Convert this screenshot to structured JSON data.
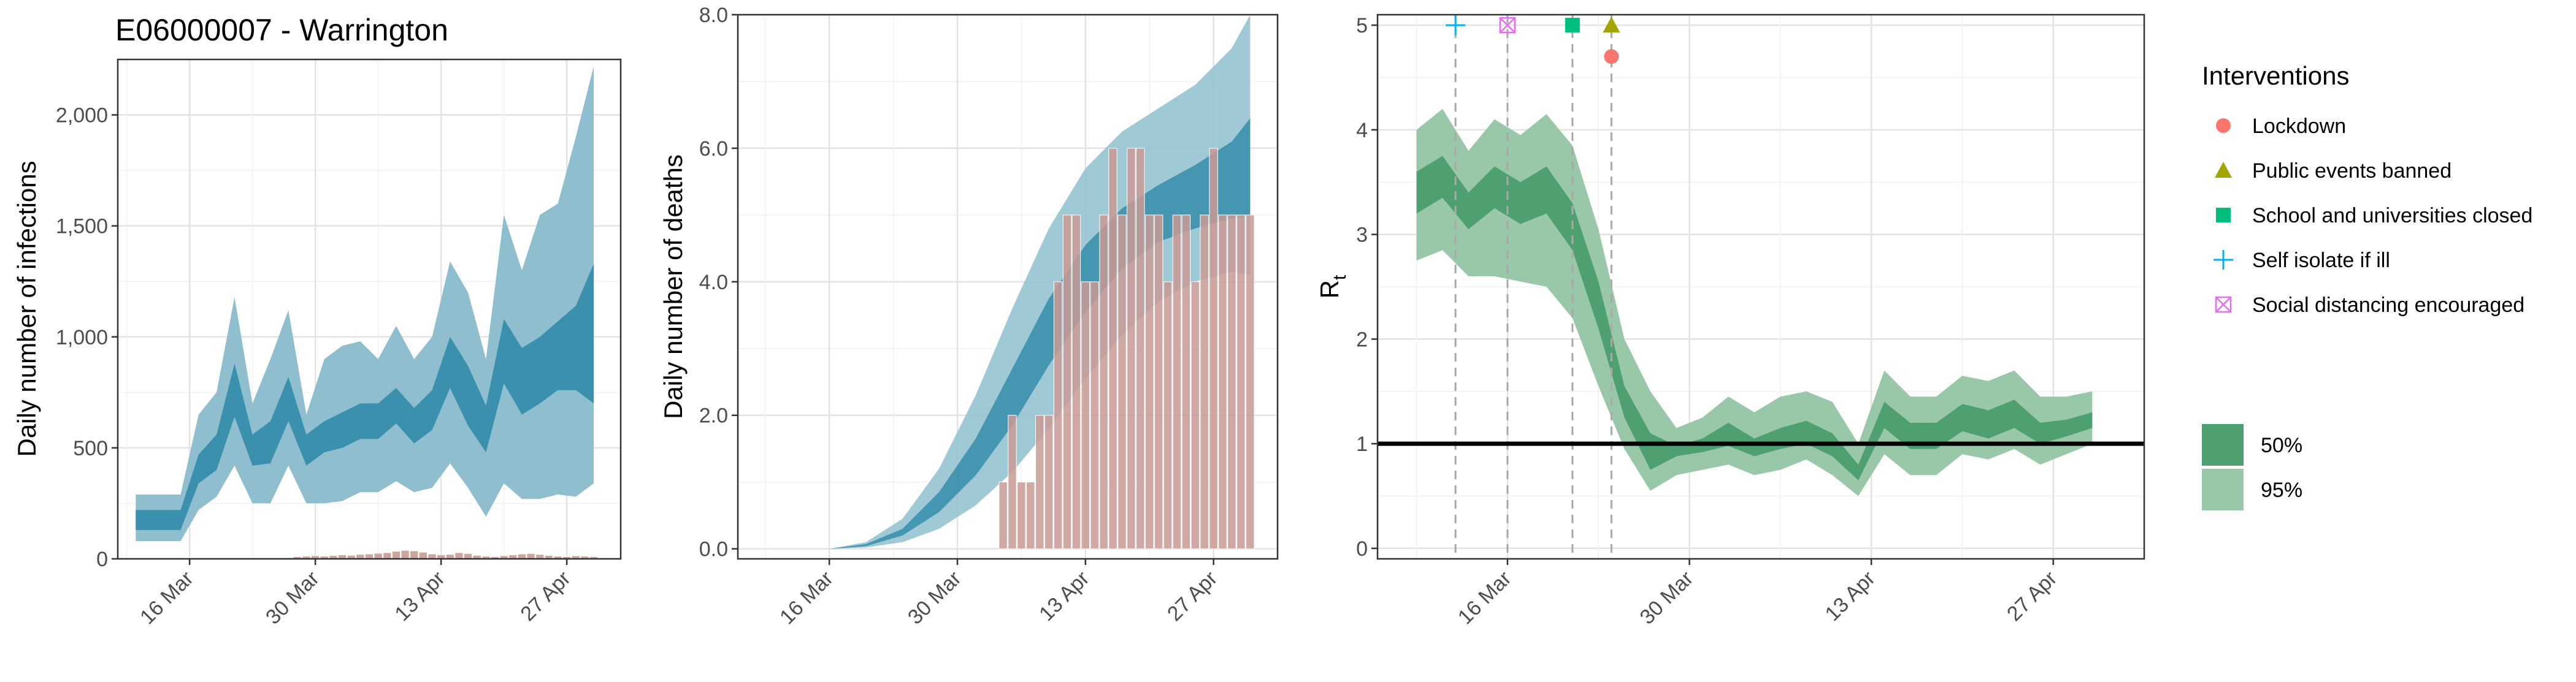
{
  "figure_title": "E06000007 - Warrington",
  "colors": {
    "infection_band_95": "#8fbfcf",
    "infection_band_50": "#3a90ad",
    "deaths_band_95": "#8fbfcf",
    "deaths_band_50": "#3a90ad",
    "observed_bar": "#c99a94",
    "rt_band_95": "#99c8a8",
    "rt_band_50": "#4ea070",
    "lockdown": "#f8766d",
    "public_events_banned": "#a3a500",
    "school_closed": "#00bf7d",
    "self_isolate": "#00b0f6",
    "social_distancing": "#e76bf3"
  },
  "chart_data": [
    {
      "id": "infections",
      "type": "area",
      "title": "E06000007 - Warrington",
      "ylabel": "Daily number of infections",
      "xlabel": "",
      "x_ticks": [
        "16 Mar",
        "30 Mar",
        "13 Apr",
        "27 Apr"
      ],
      "y_ticks": [
        "0",
        "500",
        "1,000",
        "1,500",
        "2,000"
      ],
      "ylim": [
        0,
        2250
      ],
      "xlim": [
        "2020-03-08",
        "2020-05-03"
      ],
      "grid": true,
      "series": [
        {
          "interval": "95%",
          "x": [
            "2020-03-10",
            "2020-03-15",
            "2020-03-17",
            "2020-03-19",
            "2020-03-21",
            "2020-03-23",
            "2020-03-25",
            "2020-03-27",
            "2020-03-29",
            "2020-03-31",
            "2020-04-02",
            "2020-04-04",
            "2020-04-06",
            "2020-04-08",
            "2020-04-10",
            "2020-04-12",
            "2020-04-14",
            "2020-04-16",
            "2020-04-18",
            "2020-04-20",
            "2020-04-22",
            "2020-04-24",
            "2020-04-26",
            "2020-04-28",
            "2020-04-30"
          ],
          "lower": [
            80,
            80,
            220,
            280,
            420,
            250,
            250,
            420,
            250,
            250,
            260,
            300,
            300,
            350,
            300,
            320,
            430,
            320,
            190,
            340,
            270,
            270,
            290,
            280,
            340
          ],
          "upper": [
            290,
            290,
            650,
            750,
            1180,
            700,
            900,
            1120,
            650,
            900,
            960,
            980,
            900,
            1050,
            900,
            1000,
            1340,
            1200,
            900,
            1550,
            1300,
            1550,
            1600,
            1900,
            2220
          ]
        },
        {
          "interval": "50%",
          "x": [
            "2020-03-10",
            "2020-03-15",
            "2020-03-17",
            "2020-03-19",
            "2020-03-21",
            "2020-03-23",
            "2020-03-25",
            "2020-03-27",
            "2020-03-29",
            "2020-03-31",
            "2020-04-02",
            "2020-04-04",
            "2020-04-06",
            "2020-04-08",
            "2020-04-10",
            "2020-04-12",
            "2020-04-14",
            "2020-04-16",
            "2020-04-18",
            "2020-04-20",
            "2020-04-22",
            "2020-04-24",
            "2020-04-26",
            "2020-04-28",
            "2020-04-30"
          ],
          "lower": [
            130,
            130,
            340,
            400,
            640,
            420,
            430,
            620,
            420,
            480,
            500,
            540,
            540,
            610,
            520,
            580,
            770,
            600,
            480,
            790,
            650,
            700,
            760,
            760,
            700
          ],
          "upper": [
            220,
            220,
            470,
            560,
            880,
            560,
            620,
            820,
            560,
            620,
            660,
            700,
            700,
            770,
            680,
            760,
            1000,
            870,
            690,
            1080,
            950,
            1000,
            1070,
            1140,
            1330
          ]
        }
      ],
      "observed": {
        "x": [
          "2020-03-27",
          "2020-03-28",
          "2020-03-29",
          "2020-03-30",
          "2020-03-31",
          "2020-04-01",
          "2020-04-02",
          "2020-04-03",
          "2020-04-04",
          "2020-04-05",
          "2020-04-06",
          "2020-04-07",
          "2020-04-08",
          "2020-04-09",
          "2020-04-10",
          "2020-04-11",
          "2020-04-12",
          "2020-04-13",
          "2020-04-14",
          "2020-04-15",
          "2020-04-16",
          "2020-04-17",
          "2020-04-18",
          "2020-04-19",
          "2020-04-20",
          "2020-04-21",
          "2020-04-22",
          "2020-04-23",
          "2020-04-24",
          "2020-04-25",
          "2020-04-26",
          "2020-04-27",
          "2020-04-28",
          "2020-04-29",
          "2020-04-30"
        ],
        "values": [
          5,
          10,
          12,
          14,
          12,
          15,
          18,
          16,
          20,
          22,
          25,
          28,
          34,
          38,
          36,
          30,
          22,
          18,
          20,
          28,
          24,
          16,
          12,
          10,
          14,
          18,
          22,
          24,
          20,
          15,
          12,
          10,
          14,
          12,
          10
        ]
      }
    },
    {
      "id": "deaths",
      "type": "area",
      "ylabel": "Daily number of deaths",
      "xlabel": "",
      "x_ticks": [
        "16 Mar",
        "30 Mar",
        "13 Apr",
        "27 Apr"
      ],
      "y_ticks": [
        "0.0",
        "2.0",
        "4.0",
        "6.0",
        "8.0"
      ],
      "ylim": [
        -0.15,
        8.0
      ],
      "xlim": [
        "2020-03-06",
        "2020-05-04"
      ],
      "grid": true,
      "series": [
        {
          "interval": "95%",
          "x": [
            "2020-03-16",
            "2020-03-20",
            "2020-03-24",
            "2020-03-28",
            "2020-04-01",
            "2020-04-05",
            "2020-04-09",
            "2020-04-13",
            "2020-04-17",
            "2020-04-21",
            "2020-04-25",
            "2020-04-29",
            "2020-05-01"
          ],
          "lower": [
            0,
            0.02,
            0.1,
            0.3,
            0.65,
            1.15,
            1.8,
            2.55,
            3.2,
            3.7,
            4.0,
            4.15,
            4.1
          ],
          "upper": [
            0,
            0.1,
            0.45,
            1.2,
            2.3,
            3.6,
            4.8,
            5.7,
            6.25,
            6.6,
            6.95,
            7.5,
            8.0
          ]
        },
        {
          "interval": "50%",
          "x": [
            "2020-03-16",
            "2020-03-20",
            "2020-03-24",
            "2020-03-28",
            "2020-04-01",
            "2020-04-05",
            "2020-04-09",
            "2020-04-13",
            "2020-04-17",
            "2020-04-21",
            "2020-04-25",
            "2020-04-29",
            "2020-05-01"
          ],
          "lower": [
            0,
            0.04,
            0.2,
            0.55,
            1.1,
            1.85,
            2.75,
            3.55,
            4.2,
            4.6,
            4.8,
            4.95,
            5.0
          ],
          "upper": [
            0,
            0.07,
            0.3,
            0.85,
            1.65,
            2.7,
            3.75,
            4.55,
            5.1,
            5.45,
            5.75,
            6.1,
            6.45
          ]
        }
      ],
      "observed": {
        "x": [
          "2020-04-04",
          "2020-04-05",
          "2020-04-06",
          "2020-04-07",
          "2020-04-08",
          "2020-04-09",
          "2020-04-10",
          "2020-04-11",
          "2020-04-12",
          "2020-04-13",
          "2020-04-14",
          "2020-04-15",
          "2020-04-16",
          "2020-04-17",
          "2020-04-18",
          "2020-04-19",
          "2020-04-20",
          "2020-04-21",
          "2020-04-22",
          "2020-04-23",
          "2020-04-24",
          "2020-04-25",
          "2020-04-26",
          "2020-04-27",
          "2020-04-28",
          "2020-04-29",
          "2020-04-30",
          "2020-05-01"
        ],
        "values": [
          1,
          2,
          1,
          1,
          2,
          2,
          4,
          5,
          5,
          4,
          4,
          5,
          6,
          5,
          6,
          6,
          5,
          5,
          4,
          5,
          5,
          4,
          5,
          6,
          5,
          5,
          5,
          5
        ]
      }
    },
    {
      "id": "rt",
      "type": "area",
      "ylabel": "R",
      "ylabel_subscript": "t",
      "xlabel": "",
      "x_ticks": [
        "16 Mar",
        "30 Mar",
        "13 Apr",
        "27 Apr"
      ],
      "y_ticks": [
        "0",
        "1",
        "2",
        "3",
        "4",
        "5"
      ],
      "ylim": [
        -0.1,
        5.1
      ],
      "xlim": [
        "2020-03-06",
        "2020-05-04"
      ],
      "grid": true,
      "reference_line": 1,
      "series": [
        {
          "interval": "95%",
          "x": [
            "2020-03-09",
            "2020-03-11",
            "2020-03-13",
            "2020-03-15",
            "2020-03-17",
            "2020-03-19",
            "2020-03-21",
            "2020-03-23",
            "2020-03-25",
            "2020-03-27",
            "2020-03-29",
            "2020-03-31",
            "2020-04-02",
            "2020-04-04",
            "2020-04-06",
            "2020-04-08",
            "2020-04-10",
            "2020-04-12",
            "2020-04-14",
            "2020-04-16",
            "2020-04-18",
            "2020-04-20",
            "2020-04-22",
            "2020-04-24",
            "2020-04-26",
            "2020-04-28",
            "2020-04-30"
          ],
          "lower": [
            2.75,
            2.85,
            2.6,
            2.6,
            2.55,
            2.5,
            2.2,
            1.55,
            0.95,
            0.55,
            0.7,
            0.75,
            0.8,
            0.7,
            0.75,
            0.85,
            0.7,
            0.5,
            0.9,
            0.7,
            0.7,
            0.9,
            0.85,
            0.95,
            0.8,
            0.9,
            1.0
          ],
          "upper": [
            4.0,
            4.2,
            3.8,
            4.1,
            3.95,
            4.15,
            3.85,
            3.05,
            2.0,
            1.5,
            1.15,
            1.25,
            1.45,
            1.3,
            1.45,
            1.5,
            1.4,
            1.0,
            1.7,
            1.45,
            1.45,
            1.65,
            1.6,
            1.7,
            1.45,
            1.45,
            1.5
          ]
        },
        {
          "interval": "50%",
          "x": [
            "2020-03-09",
            "2020-03-11",
            "2020-03-13",
            "2020-03-15",
            "2020-03-17",
            "2020-03-19",
            "2020-03-21",
            "2020-03-23",
            "2020-03-25",
            "2020-03-27",
            "2020-03-29",
            "2020-03-31",
            "2020-04-02",
            "2020-04-04",
            "2020-04-06",
            "2020-04-08",
            "2020-04-10",
            "2020-04-12",
            "2020-04-14",
            "2020-04-16",
            "2020-04-18",
            "2020-04-20",
            "2020-04-22",
            "2020-04-24",
            "2020-04-26",
            "2020-04-28",
            "2020-04-30"
          ],
          "lower": [
            3.2,
            3.35,
            3.05,
            3.25,
            3.1,
            3.2,
            2.85,
            2.1,
            1.25,
            0.75,
            0.88,
            0.92,
            0.98,
            0.88,
            0.95,
            1.0,
            0.88,
            0.65,
            1.15,
            0.95,
            0.95,
            1.12,
            1.05,
            1.15,
            1.0,
            1.07,
            1.15
          ],
          "upper": [
            3.6,
            3.75,
            3.4,
            3.65,
            3.5,
            3.65,
            3.3,
            2.55,
            1.55,
            1.1,
            0.98,
            1.05,
            1.2,
            1.05,
            1.15,
            1.22,
            1.1,
            0.8,
            1.4,
            1.2,
            1.2,
            1.38,
            1.32,
            1.42,
            1.2,
            1.23,
            1.3
          ]
        }
      ],
      "interventions": [
        {
          "name": "Self isolate if ill",
          "date": "2020-03-12",
          "shape": "cross",
          "color_key": "self_isolate",
          "y": 5
        },
        {
          "name": "Social distancing encouraged",
          "date": "2020-03-16",
          "shape": "box-x",
          "color_key": "social_distancing",
          "y": 5
        },
        {
          "name": "School and universities closed",
          "date": "2020-03-21",
          "shape": "square",
          "color_key": "school_closed",
          "y": 5
        },
        {
          "name": "Public events banned",
          "date": "2020-03-24",
          "shape": "triangle",
          "color_key": "public_events_banned",
          "y": 5
        },
        {
          "name": "Lockdown",
          "date": "2020-03-24",
          "shape": "circle",
          "color_key": "lockdown",
          "y": 4.7
        }
      ]
    }
  ],
  "legend": {
    "interventions_title": "Interventions",
    "interventions": [
      {
        "label": "Lockdown",
        "shape": "circle",
        "color_key": "lockdown"
      },
      {
        "label": "Public events banned",
        "shape": "triangle",
        "color_key": "public_events_banned"
      },
      {
        "label": "School and universities closed",
        "shape": "square",
        "color_key": "school_closed"
      },
      {
        "label": "Self isolate if ill",
        "shape": "cross",
        "color_key": "self_isolate"
      },
      {
        "label": "Social distancing encouraged",
        "shape": "box-x",
        "color_key": "social_distancing"
      }
    ],
    "intervals": [
      {
        "label": "50%",
        "color_key": "rt_band_50"
      },
      {
        "label": "95%",
        "color_key": "rt_band_95"
      }
    ]
  }
}
